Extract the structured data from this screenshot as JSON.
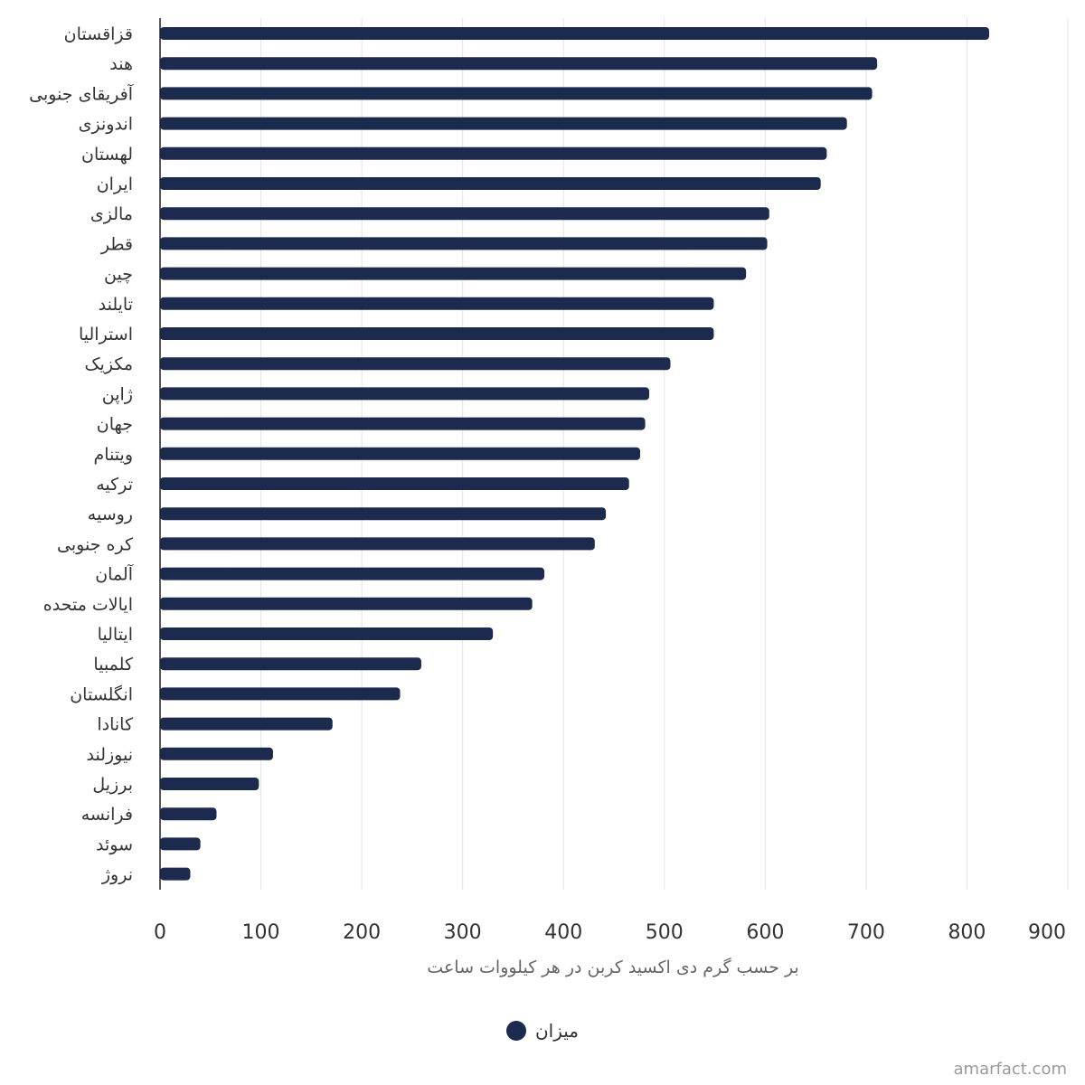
{
  "chart_data": {
    "type": "bar",
    "orientation": "horizontal",
    "categories": [
      "قزاقستان",
      "هند",
      "آفریقای جنوبی",
      "اندونزی",
      "لهستان",
      "ایران",
      "مالزی",
      "قطر",
      "چین",
      "تایلند",
      "استرالیا",
      "مکزیک",
      "ژاپن",
      "جهان",
      "ویتنام",
      "ترکیه",
      "روسیه",
      "کره جنوبی",
      "آلمان",
      "ایالات متحده",
      "ایتالیا",
      "کلمبیا",
      "انگلستان",
      "کانادا",
      "نیوزلند",
      "برزیل",
      "فرانسه",
      "سوئد",
      "نروژ"
    ],
    "series": [
      {
        "name": "میزان",
        "color": "#1c2a4d",
        "values": [
          822,
          711,
          706,
          681,
          661,
          655,
          604,
          602,
          581,
          549,
          549,
          506,
          485,
          481,
          476,
          465,
          442,
          431,
          381,
          369,
          330,
          259,
          238,
          171,
          112,
          98,
          56,
          40,
          30
        ]
      }
    ],
    "xlabel": "بر حسب گرم دی اکسید کربن در هر کیلووات ساعت",
    "xlim": [
      0,
      900
    ],
    "xticks": [
      "0",
      "100",
      "200",
      "300",
      "400",
      "500",
      "600",
      "700",
      "800",
      "900"
    ],
    "grid": "vertical",
    "legend_position": "bottom"
  },
  "watermark": "amarfact.com"
}
